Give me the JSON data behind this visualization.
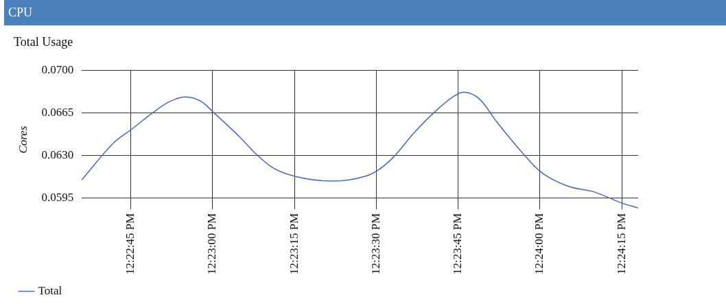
{
  "chart_data": {
    "type": "line",
    "title": "CPU",
    "subtitle": "Total Usage",
    "ylabel": "Cores",
    "x": [
      12.376667,
      12.378333,
      12.379167,
      12.380278,
      12.381111,
      12.381944,
      12.382778,
      12.383333,
      12.384722,
      12.385556,
      12.386389,
      12.3875,
      12.389444,
      12.391111,
      12.391667,
      12.3925,
      12.393611,
      12.394722,
      12.395556,
      12.396111,
      12.396944,
      12.397778,
      12.399167,
      12.4,
      12.401389,
      12.402778,
      12.404167,
      12.405
    ],
    "series": [
      {
        "name": "Total",
        "color": "#4468c0",
        "values": [
          0.061,
          0.0641,
          0.0651,
          0.0665,
          0.0674,
          0.0678,
          0.0674,
          0.0666,
          0.0645,
          0.0631,
          0.062,
          0.0613,
          0.0609,
          0.0613,
          0.0617,
          0.0628,
          0.0649,
          0.0667,
          0.0678,
          0.0682,
          0.0676,
          0.0658,
          0.0631,
          0.0617,
          0.0605,
          0.06,
          0.0591,
          0.0587
        ]
      }
    ],
    "xlim": [
      12.376667,
      12.405
    ],
    "xticks": [
      {
        "value": 12.379167,
        "label": "12:22:45 PM"
      },
      {
        "value": 12.383333,
        "label": "12:23:00 PM"
      },
      {
        "value": 12.3875,
        "label": "12:23:15 PM"
      },
      {
        "value": 12.391667,
        "label": "12:23:30 PM"
      },
      {
        "value": 12.395833,
        "label": "12:23:45 PM"
      },
      {
        "value": 12.4,
        "label": "12:24:00 PM"
      },
      {
        "value": 12.404167,
        "label": "12:24:15 PM"
      }
    ],
    "ylim": [
      0.0586,
      0.07
    ],
    "yticks": [
      {
        "value": 0.0595,
        "label": "0.0595"
      },
      {
        "value": 0.063,
        "label": "0.0630"
      },
      {
        "value": 0.0665,
        "label": "0.0665"
      },
      {
        "value": 0.07,
        "label": "0.0700"
      }
    ],
    "grid": true,
    "legend": "bottom left",
    "marker": "none",
    "line_style": "solid"
  }
}
